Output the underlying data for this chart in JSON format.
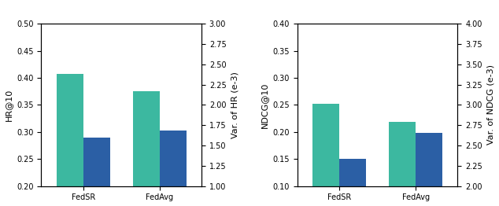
{
  "left": {
    "categories": [
      "FedSR",
      "FedAvg"
    ],
    "bar1_values": [
      0.407,
      0.375
    ],
    "bar2_values": [
      0.289,
      0.303
    ],
    "ylabel_left": "HR@10",
    "ylabel_right": "Var. of HR (e-3)",
    "ylim_left": [
      0.2,
      0.5
    ],
    "ylim_right": [
      1.0,
      3.0
    ],
    "yticks_left": [
      0.2,
      0.25,
      0.3,
      0.35,
      0.4,
      0.45,
      0.5
    ],
    "yticks_right": [
      1.0,
      1.25,
      1.5,
      1.75,
      2.0,
      2.25,
      2.5,
      2.75,
      3.0
    ]
  },
  "right": {
    "categories": [
      "FedSR",
      "FedAvg"
    ],
    "bar1_values": [
      0.252,
      0.218
    ],
    "bar2_values": [
      0.15,
      0.198
    ],
    "ylabel_left": "NDCG@10",
    "ylabel_right": "Var. of NDCG (e-3)",
    "ylim_left": [
      0.1,
      0.4
    ],
    "ylim_right": [
      2.0,
      4.0
    ],
    "yticks_left": [
      0.1,
      0.15,
      0.2,
      0.25,
      0.3,
      0.35,
      0.4
    ],
    "yticks_right": [
      2.0,
      2.25,
      2.5,
      2.75,
      3.0,
      3.25,
      3.5,
      3.75,
      4.0
    ]
  },
  "bar_color_teal": "#3cb8a0",
  "bar_color_blue": "#2b5fa5",
  "bar_width": 0.35,
  "tick_fontsize": 7,
  "label_fontsize": 8,
  "figure_bg": "#ffffff"
}
